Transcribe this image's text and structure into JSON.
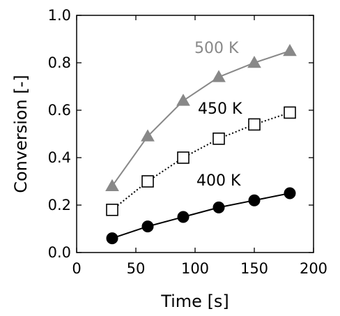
{
  "chart_data": {
    "type": "line",
    "xlabel": "Time [s]",
    "ylabel": "Conversion [-]",
    "xlim": [
      0,
      200
    ],
    "ylim": [
      0.0,
      1.0
    ],
    "xticks": [
      "0",
      "50",
      "100",
      "150",
      "200"
    ],
    "yticks": [
      "0.0",
      "0.2",
      "0.4",
      "0.6",
      "0.8",
      "1.0"
    ],
    "grid": false,
    "legend": "none",
    "series": [
      {
        "name": "500 K",
        "color": "#888888",
        "marker": "triangle-filled",
        "line": "solid",
        "x": [
          30,
          60,
          90,
          120,
          150,
          180
        ],
        "y": [
          0.28,
          0.49,
          0.64,
          0.74,
          0.8,
          0.85
        ]
      },
      {
        "name": "450 K",
        "color": "#000000",
        "marker": "square-open",
        "line": "dotted",
        "x": [
          30,
          60,
          90,
          120,
          150,
          180
        ],
        "y": [
          0.18,
          0.3,
          0.4,
          0.48,
          0.54,
          0.59
        ]
      },
      {
        "name": "400 K",
        "color": "#000000",
        "marker": "circle-filled",
        "line": "solid",
        "x": [
          30,
          60,
          90,
          120,
          150,
          180
        ],
        "y": [
          0.06,
          0.11,
          0.15,
          0.19,
          0.22,
          0.25
        ]
      }
    ]
  }
}
